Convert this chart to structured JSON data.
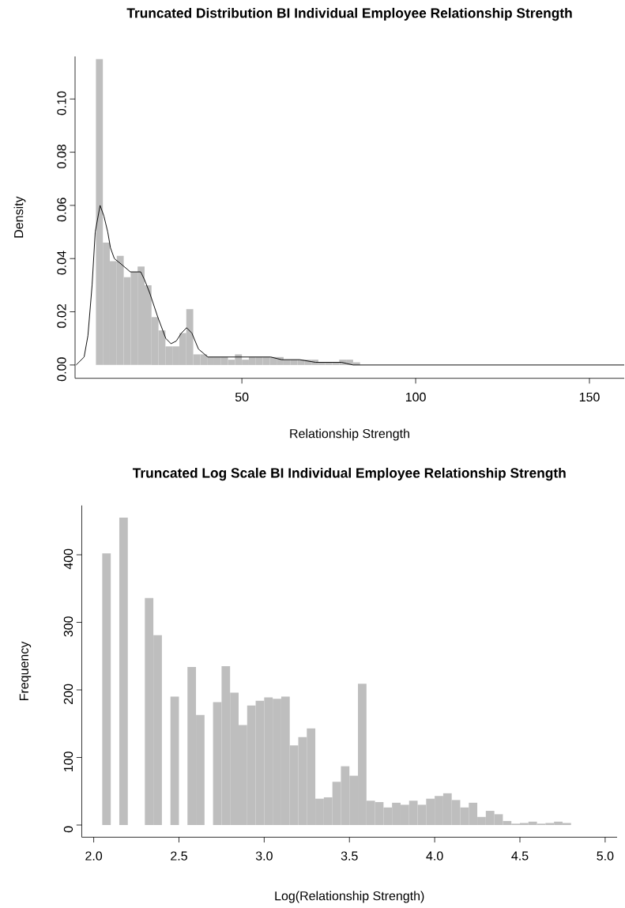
{
  "chart_data": [
    {
      "type": "histogram",
      "title": "Truncated Distribution BI Individual Employee Relationship Strength",
      "xlabel": "Relationship Strength",
      "ylabel": "Density",
      "color": "#bebebe",
      "bins": [
        8,
        10,
        12,
        14,
        16,
        18,
        20,
        22,
        24,
        26,
        28,
        30,
        32,
        34,
        36,
        38,
        40,
        42,
        44,
        46,
        48,
        50,
        52,
        54,
        56,
        58,
        60,
        62,
        64,
        66,
        68,
        70,
        72,
        74,
        76,
        78,
        80,
        82,
        84
      ],
      "values": [
        0.115,
        0.046,
        0.039,
        0.041,
        0.033,
        0.035,
        0.037,
        0.03,
        0.018,
        0.013,
        0.007,
        0.007,
        0.012,
        0.021,
        0.004,
        0.004,
        0.003,
        0.003,
        0.003,
        0.002,
        0.004,
        0.002,
        0.003,
        0.003,
        0.003,
        0.003,
        0.003,
        0.002,
        0.002,
        0.002,
        0.002,
        0.002,
        0.001,
        0.001,
        0.001,
        0.002,
        0.002,
        0.001
      ],
      "series": [
        {
          "type": "line",
          "color": "#000000",
          "x": [
            2.3,
            4.6,
            5.7,
            6.9,
            7.8,
            9.2,
            10.3,
            11.4,
            12.2,
            13.3,
            15.2,
            17.9,
            20.9,
            22.0,
            23.5,
            25.8,
            28.1,
            29.6,
            31.1,
            32.6,
            34.1,
            35.6,
            37.5,
            40.2,
            43.2,
            48.5,
            52.3,
            58.3,
            61.4,
            66.6,
            71.2,
            75.0,
            78.7,
            82.0,
            160
          ],
          "values": [
            0,
            0.003,
            0.011,
            0.03,
            0.05,
            0.06,
            0.056,
            0.05,
            0.044,
            0.04,
            0.038,
            0.035,
            0.035,
            0.032,
            0.027,
            0.018,
            0.01,
            0.008,
            0.009,
            0.012,
            0.014,
            0.012,
            0.006,
            0.003,
            0.003,
            0.003,
            0.003,
            0.003,
            0.002,
            0.002,
            0.001,
            0.001,
            0.001,
            0,
            0
          ]
        }
      ],
      "xlim": [
        2,
        160
      ],
      "ylim": [
        -0.005,
        0.116
      ],
      "xticks": [
        50,
        100,
        150
      ],
      "yticks": [
        {
          "value": 0,
          "label": "0.00"
        },
        {
          "value": 0.02,
          "label": "0.02"
        },
        {
          "value": 0.04,
          "label": "0.04"
        },
        {
          "value": 0.06,
          "label": "0.06"
        },
        {
          "value": 0.08,
          "label": "0.08"
        },
        {
          "value": 0.1,
          "label": "0.10"
        }
      ]
    },
    {
      "type": "histogram",
      "title": "Truncated Log Scale BI Individual Employee Relationship Strength",
      "xlabel": "Log(Relationship Strength)",
      "ylabel": "Frequency",
      "color": "#bebebe",
      "bins": [
        2.05,
        2.1,
        2.15,
        2.2,
        2.25,
        2.3,
        2.35,
        2.4,
        2.45,
        2.5,
        2.55,
        2.6,
        2.65,
        2.7,
        2.75,
        2.8,
        2.85,
        2.9,
        2.95,
        3.0,
        3.05,
        3.1,
        3.15,
        3.2,
        3.25,
        3.3,
        3.35,
        3.4,
        3.45,
        3.5,
        3.55,
        3.6,
        3.65,
        3.7,
        3.75,
        3.8,
        3.85,
        3.9,
        3.95,
        4.0,
        4.05,
        4.1,
        4.15,
        4.2,
        4.25,
        4.3,
        4.35,
        4.4,
        4.45,
        4.5,
        4.55,
        4.6,
        4.65,
        4.7,
        4.75,
        4.8,
        4.85,
        4.9,
        4.95,
        5.0,
        5.05
      ],
      "values": [
        402,
        0,
        455,
        0,
        0,
        336,
        281,
        0,
        190,
        0,
        234,
        163,
        0,
        182,
        235,
        196,
        148,
        177,
        184,
        189,
        187,
        190,
        118,
        130,
        143,
        39,
        41,
        64,
        87,
        73,
        209,
        36,
        34,
        26,
        33,
        30,
        36,
        30,
        39,
        43,
        47,
        37,
        26,
        33,
        12,
        21,
        16,
        6,
        2,
        3,
        5,
        2,
        3,
        5,
        3,
        0,
        0,
        0,
        0,
        0
      ],
      "xlim": [
        1.93,
        5.07
      ],
      "ylim": [
        -18,
        473
      ],
      "xticks": [
        {
          "value": 2,
          "label": "2.0"
        },
        {
          "value": 2.5,
          "label": "2.5"
        },
        {
          "value": 3,
          "label": "3.0"
        },
        {
          "value": 3.5,
          "label": "3.5"
        },
        {
          "value": 4,
          "label": "4.0"
        },
        {
          "value": 4.5,
          "label": "4.5"
        },
        {
          "value": 5,
          "label": "5.0"
        }
      ],
      "yticks": [
        0,
        100,
        200,
        300,
        400
      ]
    }
  ]
}
